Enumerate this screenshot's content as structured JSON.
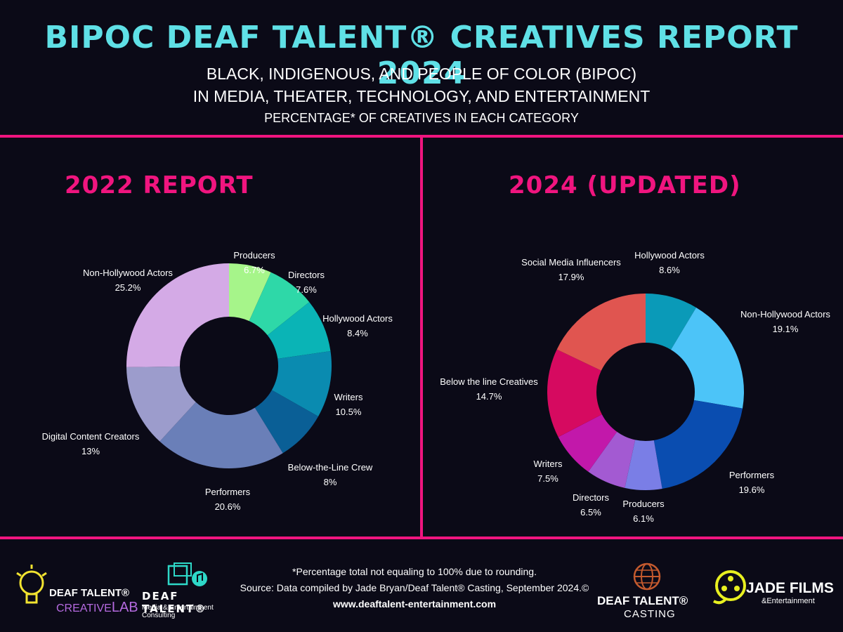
{
  "header": {
    "title": "BIPOC DEAF TALENT® CREATIVES REPORT 2024",
    "subtitle_line1": "BLACK, INDIGENOUS, AND PEOPLE OF COLOR (BIPOC)",
    "subtitle_line2": "IN MEDIA, THEATER, TECHNOLOGY, AND ENTERTAINMENT",
    "subtitle_line3": "PERCENTAGE* OF CREATIVES IN EACH CATEGORY"
  },
  "colors": {
    "accent_pink": "#f0157f",
    "title_cyan": "#5fe0e6",
    "background": "#0b0a17"
  },
  "chart_data": [
    {
      "type": "pie",
      "title": "2022 REPORT",
      "categories": [
        "Producers",
        "Directors",
        "Hollywood Actors",
        "Writers",
        "Below-the-Line Crew",
        "Performers",
        "Digital Content Creators",
        "Non-Hollywood Actors"
      ],
      "values": [
        6.7,
        7.6,
        8.4,
        10.5,
        8,
        20.6,
        13,
        25.2
      ],
      "value_labels": [
        "6.7%",
        "7.6%",
        "8.4%",
        "10.5%",
        "8%",
        "20.6%",
        "13%",
        "25.2%"
      ],
      "colors": [
        "#a6f58a",
        "#2ed8a8",
        "#0ab4b6",
        "#0a8bb0",
        "#0a5f96",
        "#6a7fb8",
        "#9c9ccc",
        "#d4aae6"
      ],
      "legend": "none"
    },
    {
      "type": "pie",
      "title": "2024 (UPDATED)",
      "categories": [
        "Hollywood Actors",
        "Non-Hollywood Actors",
        "Performers",
        "Producers",
        "Directors",
        "Writers",
        "Below the line Creatives",
        "Social Media Influencers"
      ],
      "values": [
        8.6,
        19.1,
        19.6,
        6.1,
        6.5,
        7.5,
        14.7,
        17.9
      ],
      "value_labels": [
        "8.6%",
        "19.1%",
        "19.6%",
        "6.1%",
        "6.5%",
        "7.5%",
        "14.7%",
        "17.9%"
      ],
      "colors": [
        "#0a9ab8",
        "#4cc4f8",
        "#0a4db0",
        "#7a7ee6",
        "#a35ad2",
        "#c218aa",
        "#d60a60",
        "#e05550"
      ],
      "legend": "none"
    }
  ],
  "footer": {
    "note": "*Percentage total not equaling to 100% due to rounding.",
    "source": "Source: Data compiled by Jade Bryan/Deaf Talent® Casting, September 2024.©",
    "website": "www.deaftalent-entertainment.com"
  },
  "logos": {
    "creative_lab_line1": "DEAF TALENT®",
    "creative_lab_line2a": "CREATIVE",
    "creative_lab_line2b": "LAB",
    "consulting_line1": "DEAF TALENT®",
    "consulting_line2": "Media & Entertainment Consulting",
    "casting_line1": "DEAF TALENT®",
    "casting_line2": "CASTING",
    "jade_line1": "JADE FILMS",
    "jade_line2": "&Entertainment"
  }
}
